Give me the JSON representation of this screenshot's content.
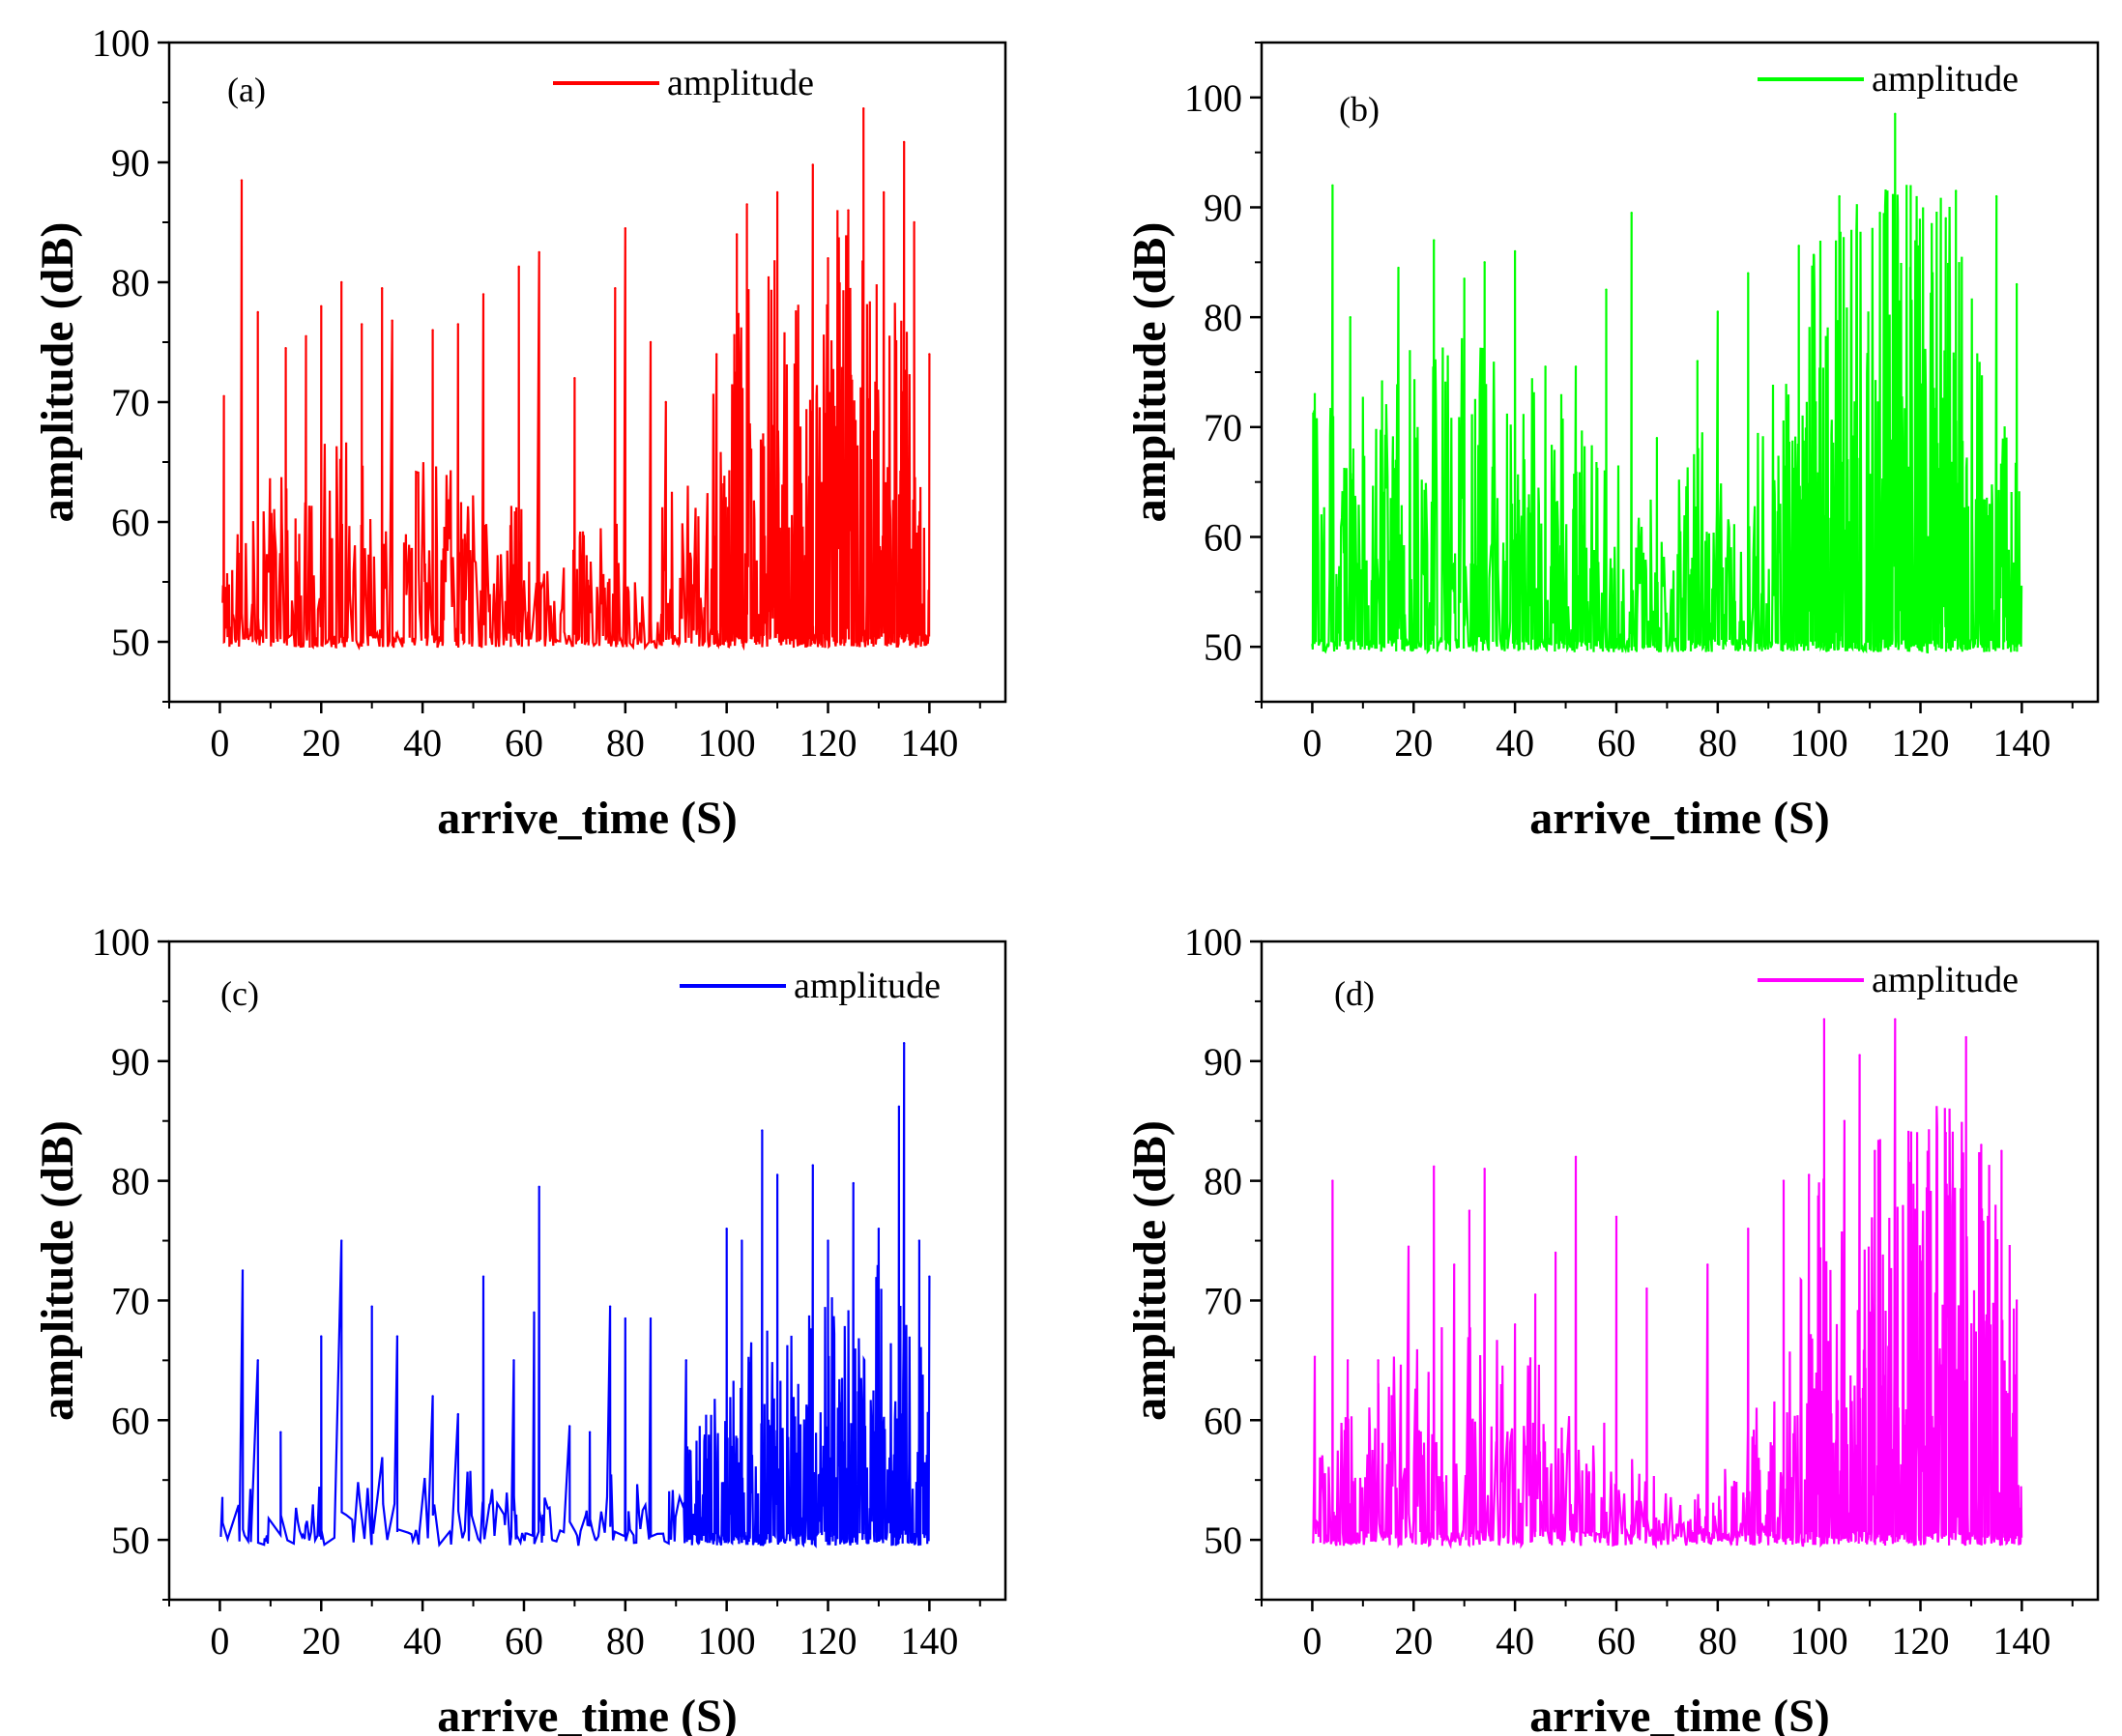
{
  "figure": {
    "description_colors": {
      "a": "#ff0000",
      "b": "#00ff00",
      "c": "#0000ff",
      "d": "#ff00ff"
    }
  },
  "chart_data": [
    {
      "id": "a",
      "type": "line",
      "panel_label": "(a)",
      "legend": "amplitude",
      "color": "#ff0000",
      "xlabel": "arrive_time (S)",
      "ylabel": "amplitude (dB)",
      "xlim": [
        -10,
        155
      ],
      "ylim": [
        45,
        100
      ],
      "xticks": [
        0,
        20,
        40,
        60,
        80,
        100,
        120,
        140
      ],
      "xtick_labels": [
        "0",
        "20",
        "40",
        "60",
        "80",
        "100",
        "120",
        "140"
      ],
      "yticks": [
        50,
        60,
        70,
        80,
        90,
        100
      ],
      "ytick_labels": [
        "50",
        "60",
        "70",
        "80",
        "90",
        "100"
      ],
      "peaks": [
        [
          0.8,
          70.5
        ],
        [
          4.3,
          88.5
        ],
        [
          7.5,
          77.5
        ],
        [
          13,
          74.5
        ],
        [
          17,
          75.5
        ],
        [
          20,
          78
        ],
        [
          24,
          80
        ],
        [
          28,
          76.5
        ],
        [
          32,
          79.5
        ],
        [
          34,
          76.8
        ],
        [
          42,
          76
        ],
        [
          47,
          76.5
        ],
        [
          52,
          79
        ],
        [
          59,
          81.3
        ],
        [
          63,
          82.5
        ],
        [
          70,
          72
        ],
        [
          78,
          79.5
        ],
        [
          80,
          84.5
        ],
        [
          85,
          75
        ],
        [
          88,
          70
        ],
        [
          98,
          74
        ],
        [
          102,
          84
        ],
        [
          104,
          86.5
        ],
        [
          110,
          87.5
        ],
        [
          117,
          89.8
        ],
        [
          120,
          82
        ],
        [
          124,
          86
        ],
        [
          127,
          94.5
        ],
        [
          131,
          87.5
        ],
        [
          135,
          91.7
        ],
        [
          137,
          85
        ],
        [
          140,
          74
        ]
      ],
      "x_end": 140,
      "floor": 49.5,
      "baseline_profile": [
        [
          0,
          55
        ],
        [
          10,
          57
        ],
        [
          30,
          60
        ],
        [
          35,
          57
        ],
        [
          40,
          58
        ],
        [
          50,
          57
        ],
        [
          60,
          56
        ],
        [
          65,
          54
        ],
        [
          75,
          55
        ],
        [
          85,
          56
        ],
        [
          95,
          57
        ],
        [
          100,
          65
        ],
        [
          120,
          70
        ],
        [
          140,
          62
        ]
      ],
      "density": [
        [
          0,
          0.5
        ],
        [
          95,
          0.5
        ],
        [
          100,
          1.0
        ],
        [
          140,
          1.0
        ]
      ],
      "seed": 11
    },
    {
      "id": "b",
      "type": "line",
      "panel_label": "(b)",
      "legend": "amplitude",
      "color": "#00ff00",
      "xlabel": "arrive_time (S)",
      "ylabel": "amplitude (dB)",
      "xlim": [
        -10,
        155
      ],
      "ylim": [
        45,
        105
      ],
      "xticks": [
        0,
        20,
        40,
        60,
        80,
        100,
        120,
        140
      ],
      "xtick_labels": [
        "0",
        "20",
        "40",
        "60",
        "80",
        "100",
        "120",
        "140"
      ],
      "yticks": [
        50,
        60,
        70,
        80,
        90,
        100
      ],
      "ytick_labels": [
        "50",
        "60",
        "70",
        "80",
        "90",
        "100"
      ],
      "peaks": [
        [
          0.5,
          73
        ],
        [
          4,
          92
        ],
        [
          7.5,
          80
        ],
        [
          17,
          84.5
        ],
        [
          24,
          87
        ],
        [
          30,
          83.5
        ],
        [
          34,
          85
        ],
        [
          40,
          86
        ],
        [
          46,
          75.5
        ],
        [
          52,
          75.5
        ],
        [
          58,
          82.5
        ],
        [
          63,
          89.5
        ],
        [
          68,
          69
        ],
        [
          76,
          76
        ],
        [
          80,
          80.5
        ],
        [
          86,
          84
        ],
        [
          96,
          86.5
        ],
        [
          104,
          91
        ],
        [
          112,
          89.5
        ],
        [
          115,
          98.5
        ],
        [
          118,
          84.5
        ],
        [
          125,
          89
        ],
        [
          127,
          91.5
        ],
        [
          135,
          91
        ],
        [
          139,
          83
        ]
      ],
      "x_end": 140,
      "floor": 49.5,
      "baseline_profile": [
        [
          0,
          62
        ],
        [
          15,
          64
        ],
        [
          30,
          65
        ],
        [
          45,
          64
        ],
        [
          55,
          60
        ],
        [
          65,
          58
        ],
        [
          70,
          56
        ],
        [
          75,
          60
        ],
        [
          90,
          62
        ],
        [
          95,
          68
        ],
        [
          110,
          72
        ],
        [
          125,
          72
        ],
        [
          135,
          62
        ],
        [
          140,
          60
        ]
      ],
      "density": [
        [
          0,
          0.7
        ],
        [
          90,
          0.7
        ],
        [
          95,
          1.0
        ],
        [
          140,
          1.0
        ]
      ],
      "seed": 23
    },
    {
      "id": "c",
      "type": "line",
      "panel_label": "(c)",
      "legend": "amplitude",
      "color": "#0000ff",
      "xlabel": "arrive_time (S)",
      "ylabel": "amplitude (dB)",
      "xlim": [
        -10,
        155
      ],
      "ylim": [
        45,
        100
      ],
      "xticks": [
        0,
        20,
        40,
        60,
        80,
        100,
        120,
        140
      ],
      "xtick_labels": [
        "0",
        "20",
        "40",
        "60",
        "80",
        "100",
        "120",
        "140"
      ],
      "yticks": [
        50,
        60,
        70,
        80,
        90,
        100
      ],
      "ytick_labels": [
        "50",
        "60",
        "70",
        "80",
        "90",
        "100"
      ],
      "peaks": [
        [
          0.5,
          53.5
        ],
        [
          4.5,
          72.5
        ],
        [
          7.5,
          65
        ],
        [
          12,
          59
        ],
        [
          20,
          67
        ],
        [
          24,
          75
        ],
        [
          30,
          69.5
        ],
        [
          35,
          67
        ],
        [
          42,
          62
        ],
        [
          47,
          60.5
        ],
        [
          52,
          72
        ],
        [
          58,
          65
        ],
        [
          62,
          69
        ],
        [
          63,
          79.5
        ],
        [
          69,
          59.5
        ],
        [
          73,
          59
        ],
        [
          77,
          69.5
        ],
        [
          80,
          68.5
        ],
        [
          85,
          68.5
        ],
        [
          92,
          65
        ],
        [
          100,
          76
        ],
        [
          103,
          75
        ],
        [
          107,
          84.2
        ],
        [
          110,
          80.5
        ],
        [
          117,
          81.3
        ],
        [
          120,
          75
        ],
        [
          125,
          79.8
        ],
        [
          130,
          76
        ],
        [
          134,
          86.2
        ],
        [
          135,
          91.5
        ],
        [
          138,
          75
        ],
        [
          140,
          72
        ]
      ],
      "x_end": 140,
      "floor": 49.5,
      "baseline_profile": [
        [
          0,
          53
        ],
        [
          10,
          52
        ],
        [
          30,
          54
        ],
        [
          50,
          53
        ],
        [
          70,
          53
        ],
        [
          90,
          53
        ],
        [
          100,
          58
        ],
        [
          130,
          62
        ],
        [
          140,
          58
        ]
      ],
      "density": [
        [
          0,
          0.12
        ],
        [
          90,
          0.2
        ],
        [
          97,
          1.0
        ],
        [
          140,
          1.0
        ]
      ],
      "seed": 37
    },
    {
      "id": "d",
      "type": "line",
      "panel_label": "(d)",
      "legend": "amplitude",
      "color": "#ff00ff",
      "xlabel": "arrive_time (S)",
      "ylabel": "amplitude (dB)",
      "xlim": [
        -10,
        155
      ],
      "ylim": [
        45,
        100
      ],
      "xticks": [
        0,
        20,
        40,
        60,
        80,
        100,
        120,
        140
      ],
      "xtick_labels": [
        "0",
        "20",
        "40",
        "60",
        "80",
        "100",
        "120",
        "140"
      ],
      "yticks": [
        50,
        60,
        70,
        80,
        90,
        100
      ],
      "ytick_labels": [
        "50",
        "60",
        "70",
        "80",
        "90",
        "100"
      ],
      "peaks": [
        [
          0.5,
          65.3
        ],
        [
          4,
          80
        ],
        [
          7,
          65
        ],
        [
          13,
          65
        ],
        [
          19,
          74.5
        ],
        [
          24,
          81.2
        ],
        [
          28,
          73
        ],
        [
          31,
          77.5
        ],
        [
          34,
          81
        ],
        [
          40,
          68
        ],
        [
          44,
          70.5
        ],
        [
          48,
          74
        ],
        [
          52,
          82
        ],
        [
          60,
          77
        ],
        [
          66,
          71
        ],
        [
          78,
          73
        ],
        [
          86,
          76
        ],
        [
          93,
          80
        ],
        [
          98,
          80.5
        ],
        [
          101,
          93.5
        ],
        [
          105,
          85
        ],
        [
          108,
          90.5
        ],
        [
          111,
          82.5
        ],
        [
          115,
          93.5
        ],
        [
          118,
          81.5
        ],
        [
          125,
          84
        ],
        [
          129,
          92
        ],
        [
          132,
          83
        ],
        [
          136,
          82.5
        ],
        [
          139,
          70
        ]
      ],
      "x_end": 140,
      "floor": 49.5,
      "baseline_profile": [
        [
          0,
          53
        ],
        [
          15,
          58
        ],
        [
          30,
          60
        ],
        [
          50,
          57
        ],
        [
          60,
          55
        ],
        [
          70,
          52
        ],
        [
          75,
          51.5
        ],
        [
          85,
          55
        ],
        [
          95,
          60
        ],
        [
          100,
          66
        ],
        [
          130,
          70
        ],
        [
          140,
          62
        ]
      ],
      "density": [
        [
          0,
          0.6
        ],
        [
          68,
          0.5
        ],
        [
          72,
          0.3
        ],
        [
          76,
          0.6
        ],
        [
          95,
          0.8
        ],
        [
          100,
          1.0
        ],
        [
          140,
          1.0
        ]
      ],
      "seed": 53
    }
  ]
}
